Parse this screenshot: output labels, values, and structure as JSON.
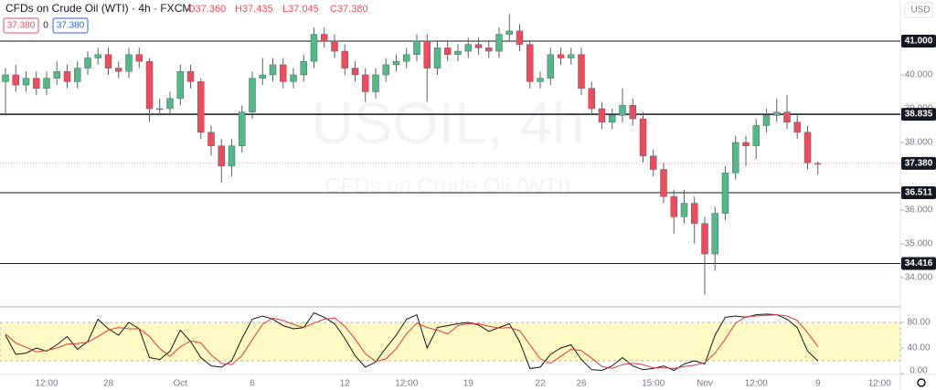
{
  "chart_data": {
    "type": "candlestick",
    "title": "CFDs on Crude Oil (WTI) · 4h · FXCM",
    "ohlc_legend": [
      "O37.360",
      "H37.435",
      "L37.045",
      "C37.380"
    ],
    "buttons": [
      "37.380",
      "0",
      "37.380"
    ],
    "currency": "USD",
    "watermark": "USOIL, 4h",
    "watermark_subtitle": "CFDs on Crude Oil (WTI)",
    "up_color": "#53b987",
    "down_color": "#eb4d5c",
    "categories": [
      null,
      null,
      null,
      null,
      "12:00",
      null,
      null,
      null,
      null,
      null,
      "28",
      null,
      null,
      null,
      null,
      null,
      null,
      "Oct",
      null,
      null,
      null,
      null,
      null,
      null,
      "6",
      null,
      null,
      null,
      null,
      null,
      null,
      null,
      null,
      "12",
      null,
      null,
      null,
      null,
      null,
      "12:00",
      null,
      null,
      null,
      null,
      null,
      "19",
      null,
      null,
      null,
      null,
      null,
      null,
      "22",
      null,
      null,
      null,
      "26",
      null,
      null,
      null,
      null,
      null,
      null,
      "15:00",
      null,
      null,
      null,
      null,
      "Nov",
      null,
      null,
      null,
      null,
      "12:00",
      null,
      null,
      null,
      null,
      null,
      "9",
      null,
      null,
      null,
      null,
      null,
      "12:00"
    ],
    "open": [
      39.8,
      40.0,
      39.7,
      39.9,
      39.6,
      39.9,
      40.1,
      39.8,
      40.2,
      40.5,
      40.6,
      40.2,
      40.1,
      40.6,
      40.4,
      39.0,
      39.0,
      39.3,
      40.1,
      39.8,
      38.3,
      37.9,
      37.3,
      37.9,
      38.9,
      39.9,
      40.0,
      40.3,
      39.8,
      40.0,
      40.4,
      41.2,
      41.0,
      40.7,
      40.2,
      40.0,
      39.5,
      40.0,
      40.3,
      40.4,
      40.6,
      41.0,
      40.2,
      40.8,
      40.6,
      40.7,
      40.9,
      40.8,
      40.7,
      41.2,
      41.3,
      40.9,
      39.8,
      39.9,
      40.6,
      40.5,
      40.6,
      39.6,
      39.0,
      38.6,
      38.8,
      39.1,
      38.7,
      37.6,
      37.2,
      36.4,
      35.8,
      36.2,
      35.6,
      34.7,
      35.9,
      37.1,
      38.0,
      37.9,
      38.5,
      38.8,
      38.9,
      38.6,
      38.3,
      37.36,
      null,
      null,
      null,
      null,
      null,
      null
    ],
    "high": [
      40.2,
      40.3,
      40.1,
      40.1,
      40.1,
      40.4,
      40.3,
      40.4,
      40.7,
      40.8,
      40.8,
      40.4,
      40.8,
      40.8,
      40.5,
      39.3,
      39.5,
      40.3,
      40.3,
      39.9,
      38.5,
      38.1,
      38.1,
      39.1,
      40.1,
      40.5,
      40.5,
      40.5,
      40.2,
      40.6,
      41.4,
      41.4,
      41.2,
      40.9,
      40.4,
      40.2,
      40.2,
      40.5,
      40.6,
      40.8,
      41.2,
      41.2,
      41.0,
      41.0,
      40.9,
      41.1,
      41.1,
      41.0,
      41.4,
      41.8,
      41.5,
      41.0,
      40.1,
      40.8,
      40.8,
      40.8,
      40.8,
      39.8,
      39.2,
      39.0,
      39.6,
      39.3,
      38.9,
      37.8,
      37.4,
      36.6,
      36.6,
      36.4,
      35.8,
      36.1,
      37.3,
      38.2,
      38.2,
      38.7,
      39.0,
      39.3,
      39.4,
      38.8,
      38.5,
      37.435,
      null,
      null,
      null,
      null,
      null,
      null
    ],
    "low": [
      38.8,
      39.5,
      39.5,
      39.4,
      39.4,
      39.7,
      39.6,
      39.6,
      40.0,
      40.3,
      40.0,
      39.9,
      39.9,
      40.2,
      38.6,
      38.8,
      38.8,
      39.1,
      39.6,
      38.1,
      37.6,
      36.8,
      37.0,
      37.7,
      38.7,
      39.7,
      39.8,
      39.6,
      39.6,
      39.8,
      40.2,
      40.8,
      40.5,
      40.0,
      39.8,
      39.2,
      39.3,
      39.8,
      40.1,
      40.2,
      40.4,
      39.2,
      40.0,
      40.4,
      40.4,
      40.5,
      40.6,
      40.5,
      40.5,
      41.0,
      40.7,
      39.6,
      39.6,
      39.7,
      40.3,
      40.3,
      39.4,
      38.8,
      38.4,
      38.4,
      38.6,
      38.5,
      37.4,
      37.0,
      36.2,
      35.3,
      35.6,
      35.0,
      33.5,
      34.2,
      35.7,
      36.9,
      37.3,
      37.5,
      38.3,
      38.6,
      38.4,
      38.1,
      37.2,
      37.045,
      null,
      null,
      null,
      null,
      null,
      null
    ],
    "close": [
      40.0,
      39.7,
      39.9,
      39.6,
      39.9,
      40.1,
      39.8,
      40.2,
      40.5,
      40.6,
      40.2,
      40.1,
      40.6,
      40.4,
      39.0,
      39.0,
      39.3,
      40.1,
      39.8,
      38.3,
      37.9,
      37.3,
      37.9,
      38.9,
      39.9,
      40.0,
      40.3,
      39.8,
      40.0,
      40.4,
      41.2,
      41.0,
      40.7,
      40.2,
      40.0,
      39.5,
      40.0,
      40.3,
      40.4,
      40.6,
      41.0,
      40.2,
      40.8,
      40.6,
      40.7,
      40.9,
      40.8,
      40.7,
      41.2,
      41.3,
      40.9,
      39.8,
      39.9,
      40.6,
      40.5,
      40.6,
      39.6,
      39.0,
      38.6,
      38.8,
      39.1,
      38.7,
      37.6,
      37.2,
      36.4,
      35.8,
      36.2,
      35.6,
      34.7,
      35.9,
      37.1,
      38.0,
      37.9,
      38.5,
      38.8,
      38.9,
      38.6,
      38.3,
      37.4,
      37.38,
      null,
      null,
      null,
      null,
      null,
      null
    ],
    "ylim": [
      33.16,
      42.216
    ],
    "yticks": [
      {
        "value": 34,
        "label": "34.000"
      },
      {
        "value": 35,
        "label": "35.000"
      },
      {
        "value": 36,
        "label": "36.000"
      },
      {
        "value": 38,
        "label": "38.000"
      },
      {
        "value": 39,
        "label": "39.000"
      },
      {
        "value": 40,
        "label": "40.000"
      }
    ],
    "hlines": [
      {
        "value": 41,
        "label": "41.000"
      },
      {
        "value": 38.835,
        "label": "38.835"
      },
      {
        "value": 36.511,
        "label": "36.511"
      },
      {
        "value": 34.416,
        "label": "34.416"
      }
    ],
    "last_price": {
      "value": 37.38,
      "label": "37.380"
    },
    "oscillator": {
      "ylim": [
        0,
        102.86
      ],
      "band": [
        20,
        80
      ],
      "band_color": "#fff9c4",
      "yticks": [
        {
          "value": 0,
          "label": "0.00"
        },
        {
          "value": 40,
          "label": "40.00"
        },
        {
          "value": 80,
          "label": "80.00"
        }
      ],
      "series": [
        {
          "color": "#131722",
          "values": [
            60,
            30,
            32,
            40,
            35,
            45,
            58,
            38,
            50,
            85,
            70,
            60,
            80,
            70,
            25,
            22,
            35,
            68,
            50,
            25,
            12,
            10,
            20,
            55,
            85,
            90,
            85,
            75,
            70,
            72,
            95,
            88,
            78,
            55,
            28,
            10,
            18,
            40,
            60,
            85,
            92,
            40,
            72,
            75,
            78,
            80,
            76,
            66,
            72,
            78,
            50,
            8,
            10,
            30,
            40,
            45,
            22,
            6,
            5,
            12,
            25,
            12,
            6,
            8,
            12,
            5,
            15,
            20,
            15,
            60,
            88,
            90,
            88,
            92,
            93,
            92,
            85,
            72,
            35,
            20,
            null,
            null,
            null,
            null,
            null,
            null
          ]
        },
        {
          "color": "#e0393e",
          "values": [
            62,
            48,
            41,
            34,
            36,
            40,
            46,
            47,
            49,
            58,
            68,
            72,
            70,
            70,
            58,
            39,
            27,
            42,
            51,
            48,
            29,
            16,
            14,
            28,
            53,
            77,
            87,
            83,
            77,
            72,
            79,
            85,
            87,
            74,
            54,
            31,
            19,
            23,
            39,
            62,
            79,
            72,
            68,
            62,
            75,
            78,
            78,
            74,
            71,
            72,
            67,
            45,
            23,
            16,
            27,
            38,
            36,
            24,
            11,
            8,
            14,
            16,
            14,
            9,
            9,
            8,
            11,
            13,
            17,
            32,
            54,
            79,
            89,
            90,
            91,
            92,
            90,
            83,
            64,
            42,
            null,
            null,
            null,
            null,
            null,
            null
          ]
        }
      ]
    }
  }
}
